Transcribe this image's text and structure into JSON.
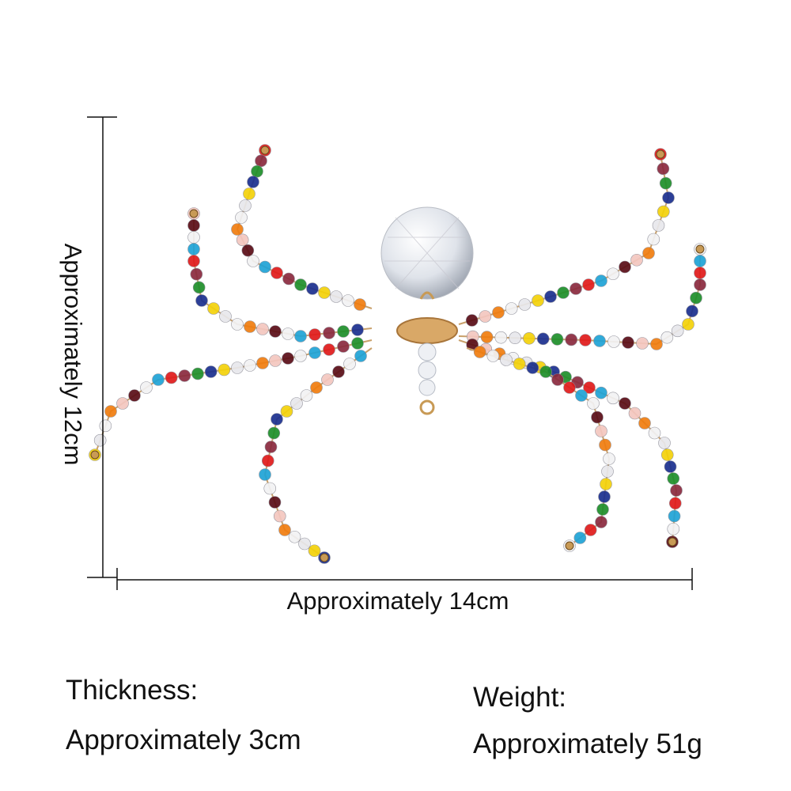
{
  "dimensions": {
    "height": "Approximately 12cm",
    "width": "Approximately 14cm"
  },
  "specs": {
    "thickness": {
      "label": "Thickness:",
      "value": "Approximately 3cm"
    },
    "weight": {
      "label": "Weight:",
      "value": "Approximately 51g"
    }
  }
}
